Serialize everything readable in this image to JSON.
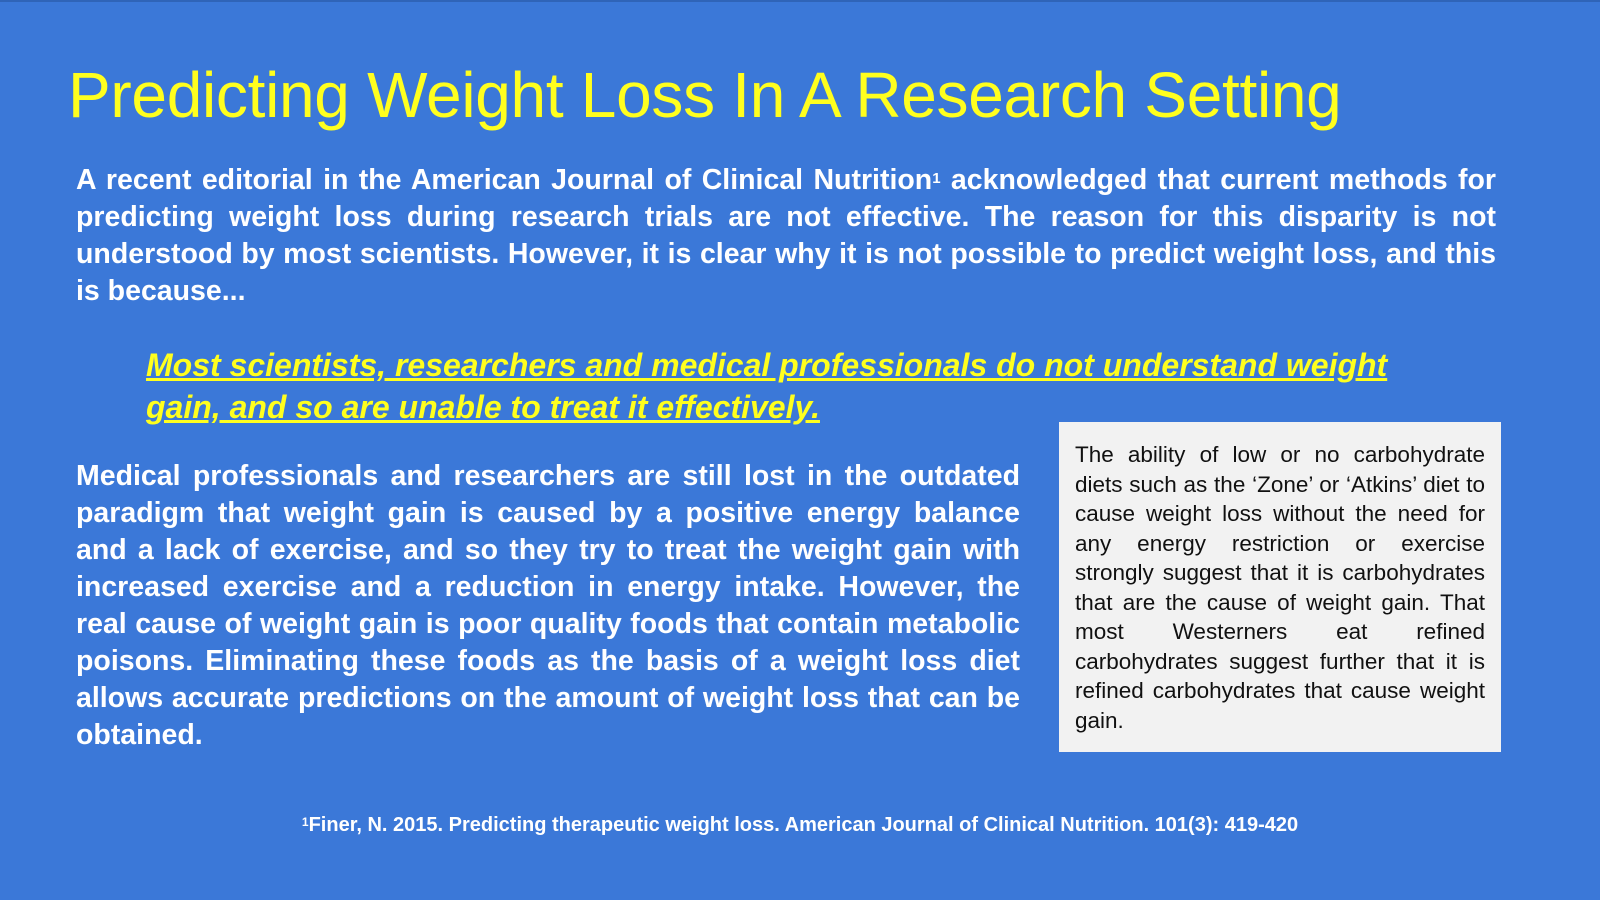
{
  "slide": {
    "title": "Predicting Weight Loss In A Research Setting",
    "intro": {
      "before_sup": "A recent editorial in the American Journal of Clinical Nutrition",
      "sup": "1",
      "after_sup": " acknowledged that current methods for predicting weight loss during research trials are not effective. The reason for this disparity is not understood by most scientists. However, it is clear why it is not possible to predict weight loss, and this is because..."
    },
    "highlight_quote": "Most scientists, researchers and medical professionals do not understand weight gain, and so are unable to treat it effectively.",
    "body_paragraph": "Medical professionals and researchers are still lost in the outdated paradigm that weight gain is caused by a positive energy balance and a lack of exercise, and so they try to treat the weight gain with increased exercise and a reduction in energy intake. However, the real cause of weight gain is poor quality foods that contain metabolic poisons. Eliminating these foods as the basis of a weight loss diet allows accurate predictions on the amount of weight loss that can be obtained.",
    "sidebar_box": "The ability of low or no carbohydrate diets such as the ‘Zone’ or ‘Atkins’ diet to cause weight loss without the need for any energy restriction or exercise strongly suggest that it is carbohydrates that are the cause of weight gain. That most Westerners eat refined carbohydrates suggest further that it is refined carbohydrates that cause weight gain.",
    "footnote": {
      "sup": "1",
      "text": "Finer, N. 2015. Predicting therapeutic weight loss. American Journal of Clinical Nutrition. 101(3): 419-420"
    }
  },
  "colors": {
    "background": "#3b78d8",
    "title": "#ffff1e",
    "body_text": "#ffffff",
    "box_background": "#f2f2f2",
    "box_text": "#111111"
  }
}
